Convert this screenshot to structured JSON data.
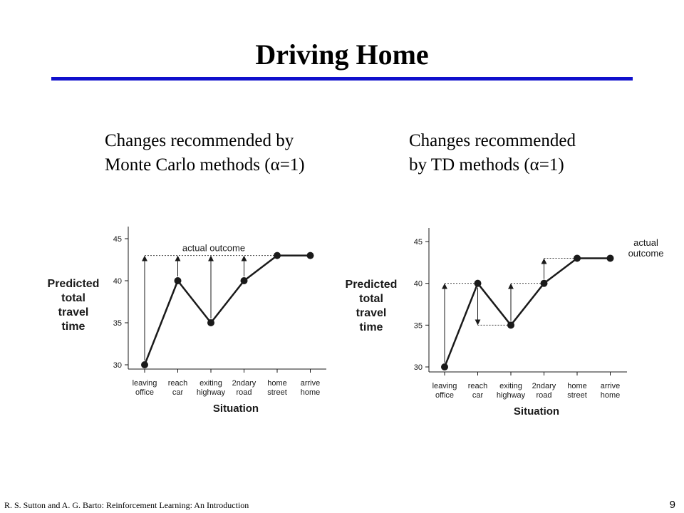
{
  "slide": {
    "title": "Driving Home",
    "rule_color": "#1010cc",
    "footer": "R. S. Sutton and A. G. Barto: Reinforcement Learning: An Introduction",
    "page_number": "9"
  },
  "captions": {
    "left": [
      "Changes recommended by",
      "Monte Carlo methods (α=1)"
    ],
    "right": [
      "Changes recommended",
      "by TD methods (α=1)"
    ]
  },
  "chart_data": [
    {
      "type": "line",
      "x": [
        "leaving office",
        "reach car",
        "exiting highway",
        "2ndary road",
        "home street",
        "arrive home"
      ],
      "x_tick_lines": [
        [
          "leaving",
          "office"
        ],
        [
          "reach",
          "car"
        ],
        [
          "exiting",
          "highway"
        ],
        [
          "2ndary",
          "road"
        ],
        [
          "home",
          "street"
        ],
        [
          "arrive",
          "home"
        ]
      ],
      "series": [
        {
          "values": [
            30,
            40,
            35,
            40,
            43,
            43
          ]
        }
      ],
      "xlabel": "Situation",
      "ylabel_lines": [
        "Predicted",
        "total",
        "travel",
        "time"
      ],
      "ylim": [
        30,
        45
      ],
      "yticks": [
        30,
        35,
        40,
        45
      ],
      "grid": false,
      "annotation": {
        "text": "actual outcome",
        "value": 43
      },
      "arrows": [
        {
          "from_x": "leaving office",
          "from": 30,
          "to": 43
        },
        {
          "from_x": "reach car",
          "from": 40,
          "to": 43
        },
        {
          "from_x": "exiting highway",
          "from": 35,
          "to": 43
        },
        {
          "from_x": "2ndary road",
          "from": 40,
          "to": 43
        }
      ]
    },
    {
      "type": "line",
      "x": [
        "leaving office",
        "reach car",
        "exiting highway",
        "2ndary road",
        "home street",
        "arrive home"
      ],
      "x_tick_lines": [
        [
          "leaving",
          "office"
        ],
        [
          "reach",
          "car"
        ],
        [
          "exiting",
          "highway"
        ],
        [
          "2ndary",
          "road"
        ],
        [
          "home",
          "street"
        ],
        [
          "arrive",
          "home"
        ]
      ],
      "series": [
        {
          "values": [
            30,
            40,
            35,
            40,
            43,
            43
          ]
        }
      ],
      "xlabel": "Situation",
      "ylabel_lines": [
        "Predicted",
        "total",
        "travel",
        "time"
      ],
      "ylim": [
        30,
        45
      ],
      "yticks": [
        30,
        35,
        40,
        45
      ],
      "grid": false,
      "annotation": {
        "text_lines": [
          "actual",
          "outcome"
        ]
      },
      "arrows": [
        {
          "from_x": "leaving office",
          "from": 30,
          "to": 40
        },
        {
          "from_x": "reach car",
          "from": 40,
          "to": 35
        },
        {
          "from_x": "exiting highway",
          "from": 35,
          "to": 40
        },
        {
          "from_x": "2ndary road",
          "from": 40,
          "to": 43
        }
      ]
    }
  ]
}
